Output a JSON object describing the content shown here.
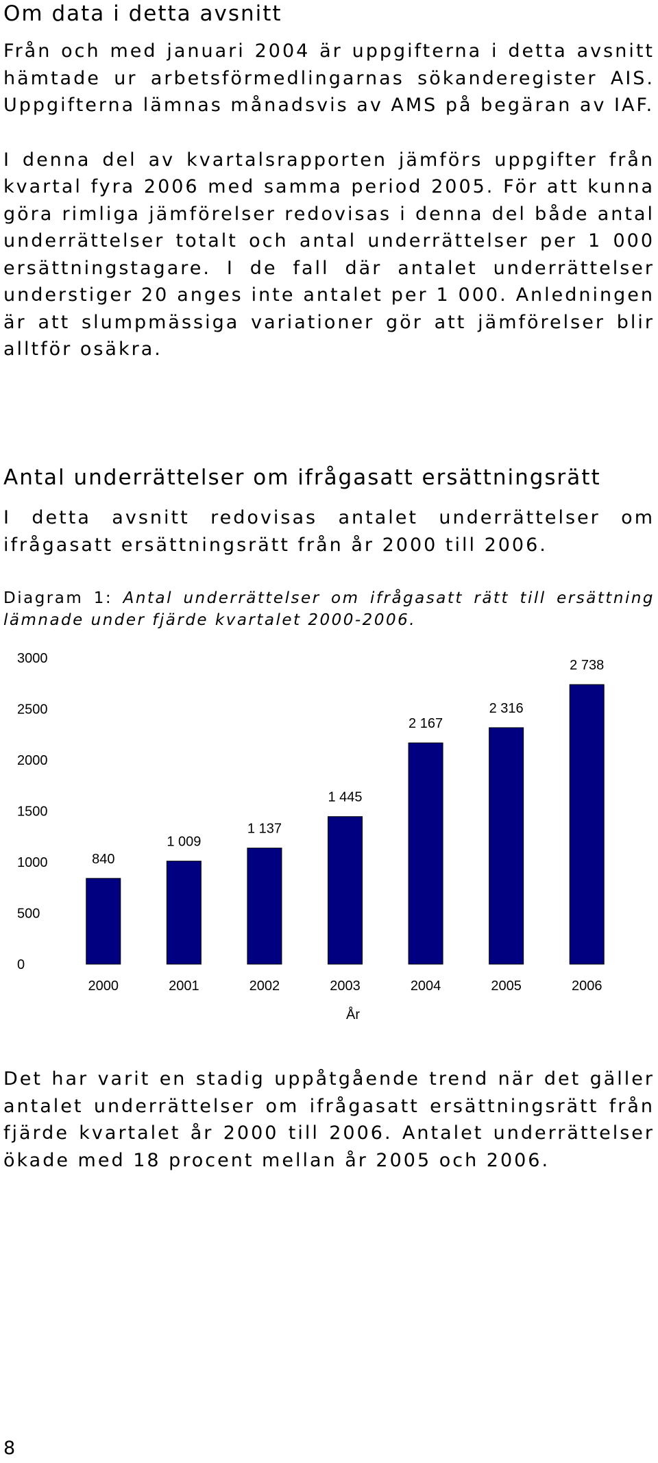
{
  "about": {
    "heading": "Om data i detta avsnitt",
    "paragraphs": [
      "Från och med januari 2004 är uppgifterna i detta avsnitt hämtade ur arbetsförmedlingarnas sökanderegister AIS. Uppgifterna lämnas månadsvis av AMS på begäran av IAF.",
      "I denna del av kvartalsrapporten jämförs uppgifter från kvartal fyra 2006 med samma period 2005. För att kunna göra rimliga jämförelser redovisas i denna del både antal underrättelser totalt och antal underrättelser per 1 000 ersättningstagare. I de fall där antalet underrättelser understiger 20 anges inte antalet per 1 000. Anledningen är att slumpmässiga variationer gör att jämförelser blir alltför osäkra."
    ]
  },
  "section": {
    "heading": "Antal underrättelser om ifrågasatt ersättningsrätt",
    "intro": "I detta avsnitt redovisas antalet underrättelser om ifrågasatt ersättningsrätt från år 2000 till 2006."
  },
  "figure": {
    "caption_label": "Diagram 1:",
    "caption_text": "Antal underrättelser om ifrågasatt rätt till ersättning lämnade under fjärde kvartalet 2000-2006."
  },
  "chart_data": {
    "type": "bar",
    "categories": [
      "2000",
      "2001",
      "2002",
      "2003",
      "2004",
      "2005",
      "2006"
    ],
    "values": [
      840,
      1009,
      1137,
      1445,
      2167,
      2316,
      2738
    ],
    "value_labels": [
      "840",
      "1 009",
      "1 137",
      "1 445",
      "2 167",
      "2 316",
      "2 738"
    ],
    "yticks": [
      "0",
      "500",
      "1000",
      "1500",
      "2000",
      "2500",
      "3000"
    ],
    "ylim": [
      0,
      3000
    ],
    "xlabel": "År",
    "ylabel": "",
    "title": "",
    "grid": false,
    "legend": "none",
    "bar_color": "#000080"
  },
  "conclusion": {
    "text": "Det har varit en stadig uppåtgående trend när det gäller antalet underrättelser om ifrågasatt ersättningsrätt från fjärde kvartalet år 2000 till 2006. Antalet underrättelser ökade med 18 procent mellan år 2005 och 2006."
  },
  "footer": {
    "page_number": "8"
  }
}
